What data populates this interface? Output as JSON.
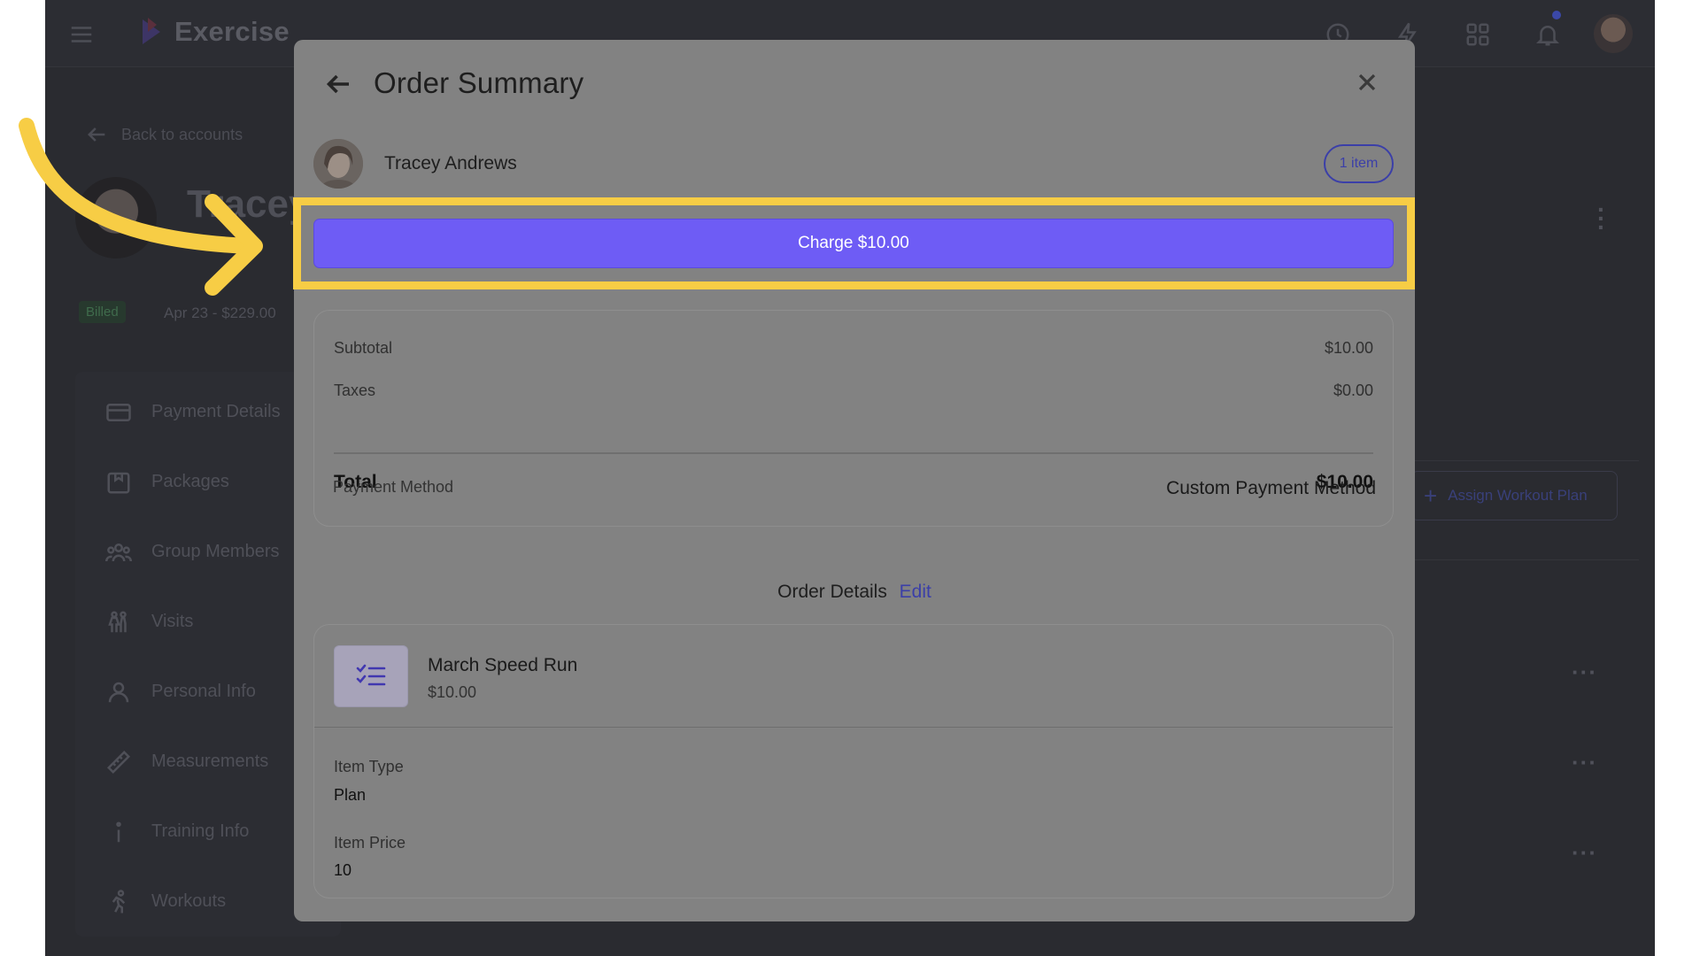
{
  "app": {
    "brand": "Exercise",
    "back_link": "Back to accounts",
    "profile_name": "Tracey",
    "billed_badge": "Billed",
    "billed_text": "Apr 23 - $229.00",
    "side_menu": [
      {
        "label": "Payment Details",
        "icon": "credit-card-icon"
      },
      {
        "label": "Packages",
        "icon": "package-icon"
      },
      {
        "label": "Group Members",
        "icon": "group-icon"
      },
      {
        "label": "Visits",
        "icon": "visits-icon"
      },
      {
        "label": "Personal Info",
        "icon": "person-icon"
      },
      {
        "label": "Measurements",
        "icon": "ruler-icon"
      },
      {
        "label": "Training Info",
        "icon": "info-icon"
      },
      {
        "label": "Workouts",
        "icon": "running-icon"
      }
    ],
    "assign_button": "Assign Workout Plan"
  },
  "modal": {
    "title": "Order Summary",
    "customer_name": "Tracey Andrews",
    "items_count": "1 item",
    "charge_button": "Charge $10.00",
    "summary": {
      "subtotal_label": "Subtotal",
      "subtotal_value": "$10.00",
      "taxes_label": "Taxes",
      "taxes_value": "$0.00",
      "total_label": "Total",
      "total_value": "$10.00",
      "payment_method_label": "Payment Method",
      "payment_method_value": "Custom Payment Method"
    },
    "order_details": {
      "heading": "Order Details",
      "edit_label": "Edit",
      "item_name": "March Speed Run",
      "item_price_display": "$10.00",
      "item_type_label": "Item Type",
      "item_type_value": "Plan",
      "item_price_label": "Item Price",
      "item_price_value": "10"
    }
  },
  "colors": {
    "accent": "#6e5cf5",
    "link": "#3b3fa8",
    "highlight": "#f7cd45"
  }
}
